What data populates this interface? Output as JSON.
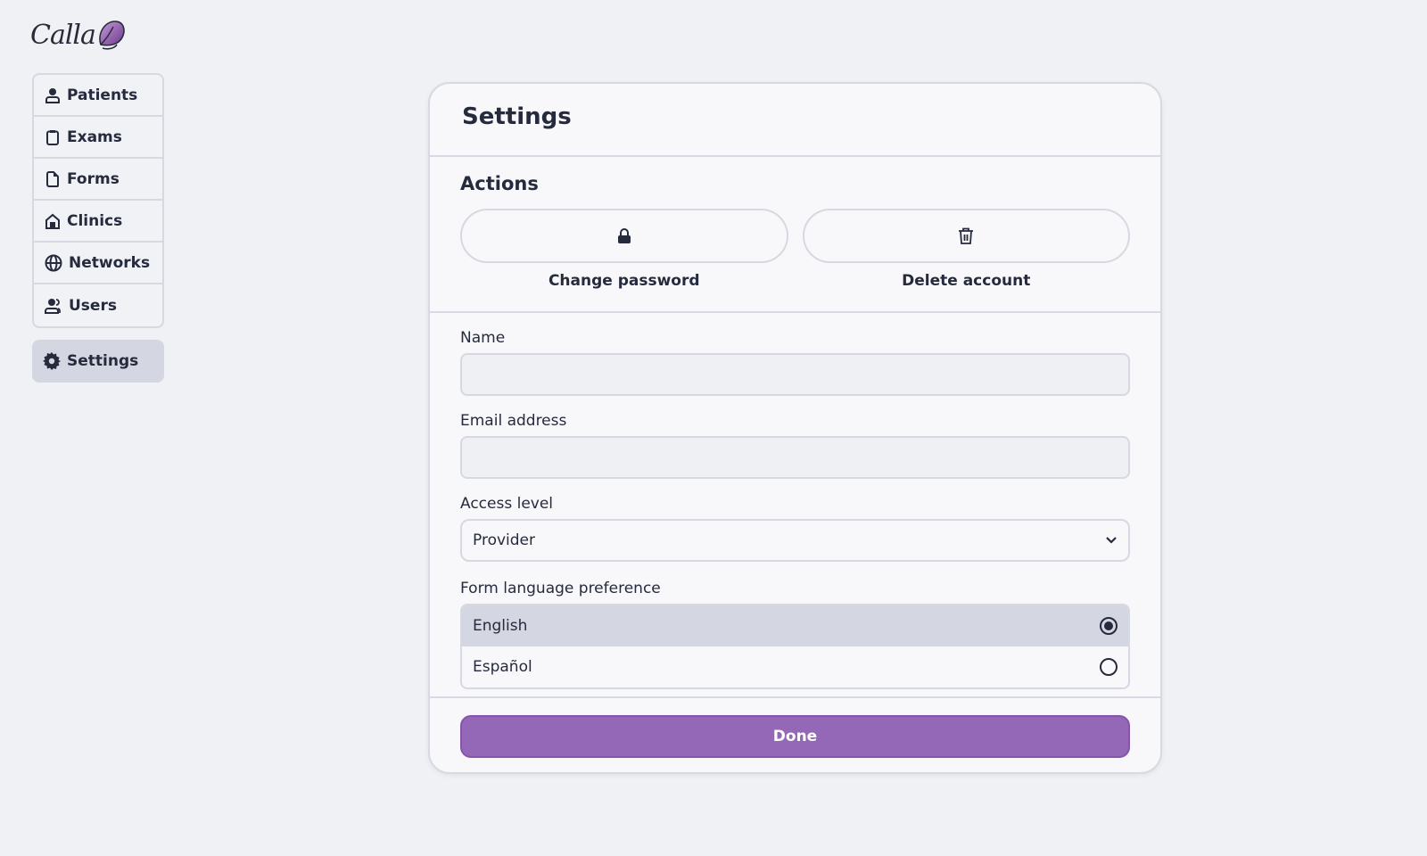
{
  "brand": {
    "name": "Calla",
    "accent": "#9467b7"
  },
  "sidebar": {
    "items": [
      {
        "label": "Patients",
        "icon": "user-icon"
      },
      {
        "label": "Exams",
        "icon": "clipboard-icon"
      },
      {
        "label": "Forms",
        "icon": "document-icon"
      },
      {
        "label": "Clinics",
        "icon": "house-icon"
      },
      {
        "label": "Networks",
        "icon": "globe-icon"
      },
      {
        "label": "Users",
        "icon": "users-icon"
      }
    ],
    "settings": {
      "label": "Settings",
      "icon": "gear-icon",
      "active": true
    }
  },
  "card": {
    "title": "Settings",
    "actions": {
      "heading": "Actions",
      "change_password": "Change password",
      "delete_account": "Delete account"
    },
    "form": {
      "name_label": "Name",
      "name_value": "",
      "email_label": "Email address",
      "email_value": "",
      "access_label": "Access level",
      "access_value": "Provider",
      "language_label": "Form language preference",
      "languages": [
        {
          "label": "English",
          "selected": true
        },
        {
          "label": "Español",
          "selected": false
        }
      ]
    },
    "done": "Done"
  }
}
